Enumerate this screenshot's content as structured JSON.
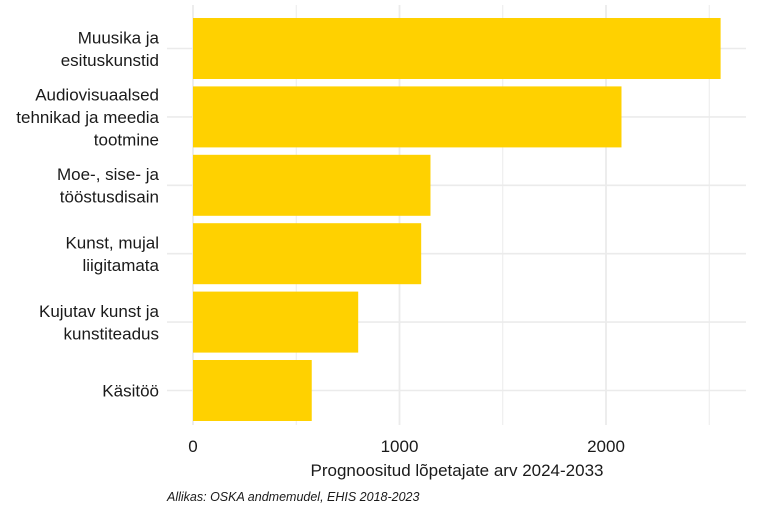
{
  "chart_data": {
    "type": "bar",
    "orientation": "horizontal",
    "categories": [
      [
        "Muusika ja",
        "esituskunstid"
      ],
      [
        "Audiovisuaalsed",
        "tehnikad ja meedia",
        "tootmine"
      ],
      [
        "Moe-, sise- ja",
        "tööstusdisain"
      ],
      [
        "Kunst, mujal",
        "liigitamata"
      ],
      [
        "Kujutav kunst ja",
        "kunstiteadus"
      ],
      [
        "Käsitöö"
      ]
    ],
    "values": [
      2555,
      2075,
      1150,
      1105,
      800,
      575
    ],
    "xlabel": "Prognoositud lõpetajate arv 2024-2033",
    "xlim": [
      0,
      2700
    ],
    "xticks": [
      0,
      1000,
      2000
    ],
    "xticks_labels": [
      "0",
      "1000",
      "2000"
    ],
    "minor_gridlines": [
      500,
      1500,
      2500
    ],
    "grid": true,
    "legend": "none",
    "bar_color": "#FFD100",
    "grid_color": "#EBEBEB"
  },
  "source": "Allikas: OSKA andmemudel, EHIS 2018-2023"
}
